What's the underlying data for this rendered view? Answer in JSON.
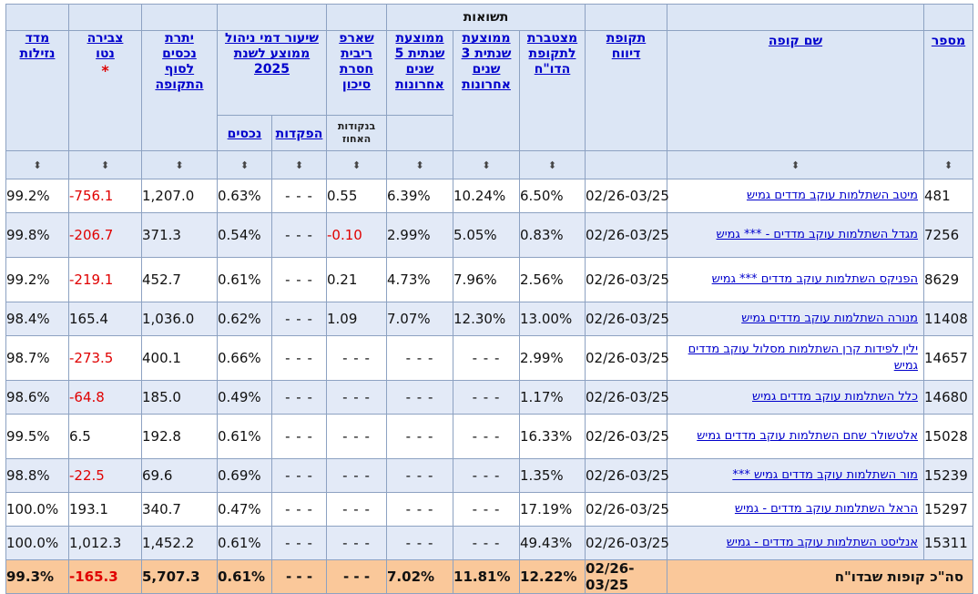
{
  "header": {
    "returns_group": "תשואות",
    "col_number": "מספר",
    "col_fund_name": "שם קופה",
    "col_report_period": "תקופת דיווח",
    "col_cumulative": "מצטברת לתקופת הדו\"ח",
    "col_avg3": "ממוצעת שנתית 3 שנים אחרונות",
    "col_avg5": "ממוצעת שנתית 5 שנים אחרונות",
    "col_sharpe": "שארפ ריבית חסרת סיכון",
    "col_sharpe_sub": "בנקודות האחוז",
    "col_fee": "שיעור דמי ניהול ממוצע לשנת 2025",
    "col_fee_deposits": "הפקדות",
    "col_fee_assets": "נכסים",
    "col_balance": "יתרת נכסים לסוף התקופה",
    "col_net_accumulation": "צבירה נטו",
    "col_net_accumulation_mark": "*",
    "col_liquidity": "מדד נזילות",
    "sort_glyph": "⬍"
  },
  "rows": [
    {
      "id": "481",
      "name": "מיטב השתלמות עוקב מדדים גמיש",
      "period": "02/26-03/25",
      "cumulative": "6.50%",
      "avg3": "10.24%",
      "avg5": "6.39%",
      "sharpe": "0.55",
      "fee_deposits": "- - -",
      "fee_assets": "0.63%",
      "balance": "1,207.0",
      "net": "-756.1",
      "liquidity": "99.2%"
    },
    {
      "id": "7256",
      "name": "מגדל השתלמות עוקב מדדים - *** גמיש",
      "period": "02/26-03/25",
      "cumulative": "0.83%",
      "avg3": "5.05%",
      "avg5": "2.99%",
      "sharpe": "-0.10",
      "fee_deposits": "- - -",
      "fee_assets": "0.54%",
      "balance": "371.3",
      "net": "-206.7",
      "liquidity": "99.8%"
    },
    {
      "id": "8629",
      "name": "הפניקס השתלמות עוקב מדדים *** גמיש",
      "period": "02/26-03/25",
      "cumulative": "2.56%",
      "avg3": "7.96%",
      "avg5": "4.73%",
      "sharpe": "0.21",
      "fee_deposits": "- - -",
      "fee_assets": "0.61%",
      "balance": "452.7",
      "net": "-219.1",
      "liquidity": "99.2%"
    },
    {
      "id": "11408",
      "name": "מנורה השתלמות עוקב מדדים גמיש",
      "period": "02/26-03/25",
      "cumulative": "13.00%",
      "avg3": "12.30%",
      "avg5": "7.07%",
      "sharpe": "1.09",
      "fee_deposits": "- - -",
      "fee_assets": "0.62%",
      "balance": "1,036.0",
      "net": "165.4",
      "liquidity": "98.4%"
    },
    {
      "id": "14657",
      "name": "ילין לפידות קרן השתלמות מסלול עוקב מדדים גמיש",
      "period": "02/26-03/25",
      "cumulative": "2.99%",
      "avg3": "- - -",
      "avg5": "- - -",
      "sharpe": "- - -",
      "fee_deposits": "- - -",
      "fee_assets": "0.66%",
      "balance": "400.1",
      "net": "-273.5",
      "liquidity": "98.7%"
    },
    {
      "id": "14680",
      "name": "כלל השתלמות עוקב מדדים גמיש",
      "period": "02/26-03/25",
      "cumulative": "1.17%",
      "avg3": "- - -",
      "avg5": "- - -",
      "sharpe": "- - -",
      "fee_deposits": "- - -",
      "fee_assets": "0.49%",
      "balance": "185.0",
      "net": "-64.8",
      "liquidity": "98.6%"
    },
    {
      "id": "15028",
      "name": "אלטשולר שחם השתלמות עוקב מדדים גמיש",
      "period": "02/26-03/25",
      "cumulative": "16.33%",
      "avg3": "- - -",
      "avg5": "- - -",
      "sharpe": "- - -",
      "fee_deposits": "- - -",
      "fee_assets": "0.61%",
      "balance": "192.8",
      "net": "6.5",
      "liquidity": "99.5%"
    },
    {
      "id": "15239",
      "name": "מור השתלמות עוקב מדדים גמיש ***",
      "period": "02/26-03/25",
      "cumulative": "1.35%",
      "avg3": "- - -",
      "avg5": "- - -",
      "sharpe": "- - -",
      "fee_deposits": "- - -",
      "fee_assets": "0.69%",
      "balance": "69.6",
      "net": "-22.5",
      "liquidity": "98.8%"
    },
    {
      "id": "15297",
      "name": "הראל השתלמות עוקב מדדים - גמיש",
      "period": "02/26-03/25",
      "cumulative": "17.19%",
      "avg3": "- - -",
      "avg5": "- - -",
      "sharpe": "- - -",
      "fee_deposits": "- - -",
      "fee_assets": "0.47%",
      "balance": "340.7",
      "net": "193.1",
      "liquidity": "100.0%"
    },
    {
      "id": "15311",
      "name": "אנליסט השתלמות עוקב מדדים - גמיש",
      "period": "02/26-03/25",
      "cumulative": "49.43%",
      "avg3": "- - -",
      "avg5": "- - -",
      "sharpe": "- - -",
      "fee_deposits": "- - -",
      "fee_assets": "0.61%",
      "balance": "1,452.2",
      "net": "1,012.3",
      "liquidity": "100.0%"
    }
  ],
  "total": {
    "label": "סה\"כ קופות שבדו\"ח",
    "period": "02/26-03/25",
    "cumulative": "12.22%",
    "avg3": "11.81%",
    "avg5": "7.02%",
    "sharpe": "- - -",
    "fee_deposits": "- - -",
    "fee_assets": "0.61%",
    "balance": "5,707.3",
    "net": "-165.3",
    "liquidity": "99.3%"
  }
}
